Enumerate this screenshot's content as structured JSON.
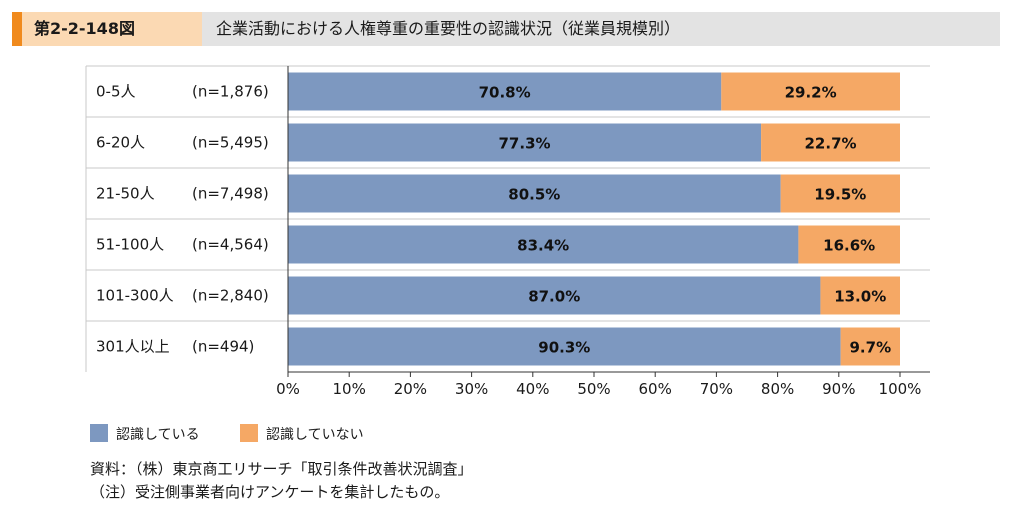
{
  "header": {
    "figure_no": "第2-2-148図",
    "title": "企業活動における人権尊重の重要性の認識状況（従業員規模別）"
  },
  "colors": {
    "header_accent": "#f08a1d",
    "header_fig_bg": "#fbd9b3",
    "header_bg": "#e3e3e3",
    "series_aware": "#7d98c0",
    "series_unaware": "#f5a865"
  },
  "chart_data": {
    "type": "bar",
    "orientation": "horizontal",
    "stacked": true,
    "categories": [
      "0-5人",
      "6-20人",
      "21-50人",
      "51-100人",
      "101-300人",
      "301人以上"
    ],
    "sample_sizes": [
      "(n=1,876)",
      "(n=5,495)",
      "(n=7,498)",
      "(n=4,564)",
      "(n=2,840)",
      "(n=494)"
    ],
    "series": [
      {
        "name": "認識している",
        "values": [
          70.8,
          77.3,
          80.5,
          83.4,
          87.0,
          90.3
        ],
        "labels": [
          "70.8%",
          "77.3%",
          "80.5%",
          "83.4%",
          "87.0%",
          "90.3%"
        ]
      },
      {
        "name": "認識していない",
        "values": [
          29.2,
          22.7,
          19.5,
          16.6,
          13.0,
          9.7
        ],
        "labels": [
          "29.2%",
          "22.7%",
          "19.5%",
          "16.6%",
          "13.0%",
          "9.7%"
        ]
      }
    ],
    "xlim": [
      0,
      100
    ],
    "xticks": [
      "0%",
      "10%",
      "20%",
      "30%",
      "40%",
      "50%",
      "60%",
      "70%",
      "80%",
      "90%",
      "100%"
    ],
    "legend_position": "bottom-left",
    "grid": false
  },
  "notes": {
    "source": "資料：（株）東京商工リサーチ「取引条件改善状況調査」",
    "note": "（注）受注側事業者向けアンケートを集計したもの。"
  }
}
